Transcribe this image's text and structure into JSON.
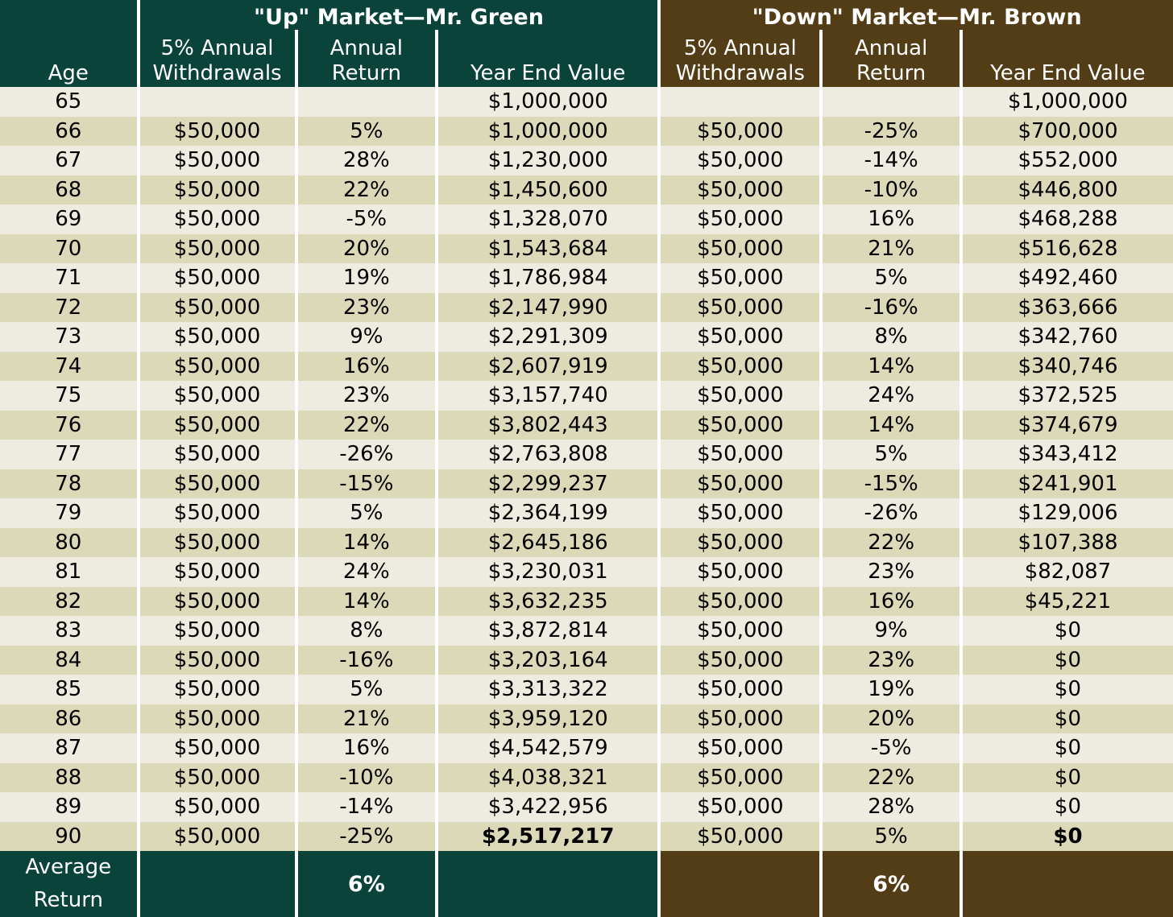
{
  "headers": {
    "up_title": "\"Up\" Market—Mr. Green",
    "down_title": "\"Down\" Market—Mr. Brown",
    "age": "Age",
    "withdrawals": "5% Annual\nWithdrawals",
    "annual_return": "Annual\nReturn",
    "year_end_value": "Year End Value"
  },
  "rows": [
    {
      "age": "65",
      "up_w": "",
      "up_r": "",
      "up_v": "$1,000,000",
      "down_w": "",
      "down_r": "",
      "down_v": "$1,000,000"
    },
    {
      "age": "66",
      "up_w": "$50,000",
      "up_r": "5%",
      "up_v": "$1,000,000",
      "down_w": "$50,000",
      "down_r": "-25%",
      "down_v": "$700,000"
    },
    {
      "age": "67",
      "up_w": "$50,000",
      "up_r": "28%",
      "up_v": "$1,230,000",
      "down_w": "$50,000",
      "down_r": "-14%",
      "down_v": "$552,000"
    },
    {
      "age": "68",
      "up_w": "$50,000",
      "up_r": "22%",
      "up_v": "$1,450,600",
      "down_w": "$50,000",
      "down_r": "-10%",
      "down_v": "$446,800"
    },
    {
      "age": "69",
      "up_w": "$50,000",
      "up_r": "-5%",
      "up_v": "$1,328,070",
      "down_w": "$50,000",
      "down_r": "16%",
      "down_v": "$468,288"
    },
    {
      "age": "70",
      "up_w": "$50,000",
      "up_r": "20%",
      "up_v": "$1,543,684",
      "down_w": "$50,000",
      "down_r": "21%",
      "down_v": "$516,628"
    },
    {
      "age": "71",
      "up_w": "$50,000",
      "up_r": "19%",
      "up_v": "$1,786,984",
      "down_w": "$50,000",
      "down_r": "5%",
      "down_v": "$492,460"
    },
    {
      "age": "72",
      "up_w": "$50,000",
      "up_r": "23%",
      "up_v": "$2,147,990",
      "down_w": "$50,000",
      "down_r": "-16%",
      "down_v": "$363,666"
    },
    {
      "age": "73",
      "up_w": "$50,000",
      "up_r": "9%",
      "up_v": "$2,291,309",
      "down_w": "$50,000",
      "down_r": "8%",
      "down_v": "$342,760"
    },
    {
      "age": "74",
      "up_w": "$50,000",
      "up_r": "16%",
      "up_v": "$2,607,919",
      "down_w": "$50,000",
      "down_r": "14%",
      "down_v": "$340,746"
    },
    {
      "age": "75",
      "up_w": "$50,000",
      "up_r": "23%",
      "up_v": "$3,157,740",
      "down_w": "$50,000",
      "down_r": "24%",
      "down_v": "$372,525"
    },
    {
      "age": "76",
      "up_w": "$50,000",
      "up_r": "22%",
      "up_v": "$3,802,443",
      "down_w": "$50,000",
      "down_r": "14%",
      "down_v": "$374,679"
    },
    {
      "age": "77",
      "up_w": "$50,000",
      "up_r": "-26%",
      "up_v": "$2,763,808",
      "down_w": "$50,000",
      "down_r": "5%",
      "down_v": "$343,412"
    },
    {
      "age": "78",
      "up_w": "$50,000",
      "up_r": "-15%",
      "up_v": "$2,299,237",
      "down_w": "$50,000",
      "down_r": "-15%",
      "down_v": "$241,901"
    },
    {
      "age": "79",
      "up_w": "$50,000",
      "up_r": "5%",
      "up_v": "$2,364,199",
      "down_w": "$50,000",
      "down_r": "-26%",
      "down_v": "$129,006"
    },
    {
      "age": "80",
      "up_w": "$50,000",
      "up_r": "14%",
      "up_v": "$2,645,186",
      "down_w": "$50,000",
      "down_r": "22%",
      "down_v": "$107,388"
    },
    {
      "age": "81",
      "up_w": "$50,000",
      "up_r": "24%",
      "up_v": "$3,230,031",
      "down_w": "$50,000",
      "down_r": "23%",
      "down_v": "$82,087"
    },
    {
      "age": "82",
      "up_w": "$50,000",
      "up_r": "14%",
      "up_v": "$3,632,235",
      "down_w": "$50,000",
      "down_r": "16%",
      "down_v": "$45,221"
    },
    {
      "age": "83",
      "up_w": "$50,000",
      "up_r": "8%",
      "up_v": "$3,872,814",
      "down_w": "$50,000",
      "down_r": "9%",
      "down_v": "$0"
    },
    {
      "age": "84",
      "up_w": "$50,000",
      "up_r": "-16%",
      "up_v": "$3,203,164",
      "down_w": "$50,000",
      "down_r": "23%",
      "down_v": "$0"
    },
    {
      "age": "85",
      "up_w": "$50,000",
      "up_r": "5%",
      "up_v": "$3,313,322",
      "down_w": "$50,000",
      "down_r": "19%",
      "down_v": "$0"
    },
    {
      "age": "86",
      "up_w": "$50,000",
      "up_r": "21%",
      "up_v": "$3,959,120",
      "down_w": "$50,000",
      "down_r": "20%",
      "down_v": "$0"
    },
    {
      "age": "87",
      "up_w": "$50,000",
      "up_r": "16%",
      "up_v": "$4,542,579",
      "down_w": "$50,000",
      "down_r": "-5%",
      "down_v": "$0"
    },
    {
      "age": "88",
      "up_w": "$50,000",
      "up_r": "-10%",
      "up_v": "$4,038,321",
      "down_w": "$50,000",
      "down_r": "22%",
      "down_v": "$0"
    },
    {
      "age": "89",
      "up_w": "$50,000",
      "up_r": "-14%",
      "up_v": "$3,422,956",
      "down_w": "$50,000",
      "down_r": "28%",
      "down_v": "$0"
    },
    {
      "age": "90",
      "up_w": "$50,000",
      "up_r": "-25%",
      "up_v": "$2,517,217",
      "down_w": "$50,000",
      "down_r": "5%",
      "down_v": "$0",
      "final": true
    }
  ],
  "footer": {
    "label": "Average\nReturn",
    "up_avg": "6%",
    "down_avg": "6%"
  },
  "colors": {
    "green_header": "#0a433a",
    "brown_header": "#533d16",
    "row_light": "#eeece1",
    "row_dark": "#dcd9b8"
  }
}
